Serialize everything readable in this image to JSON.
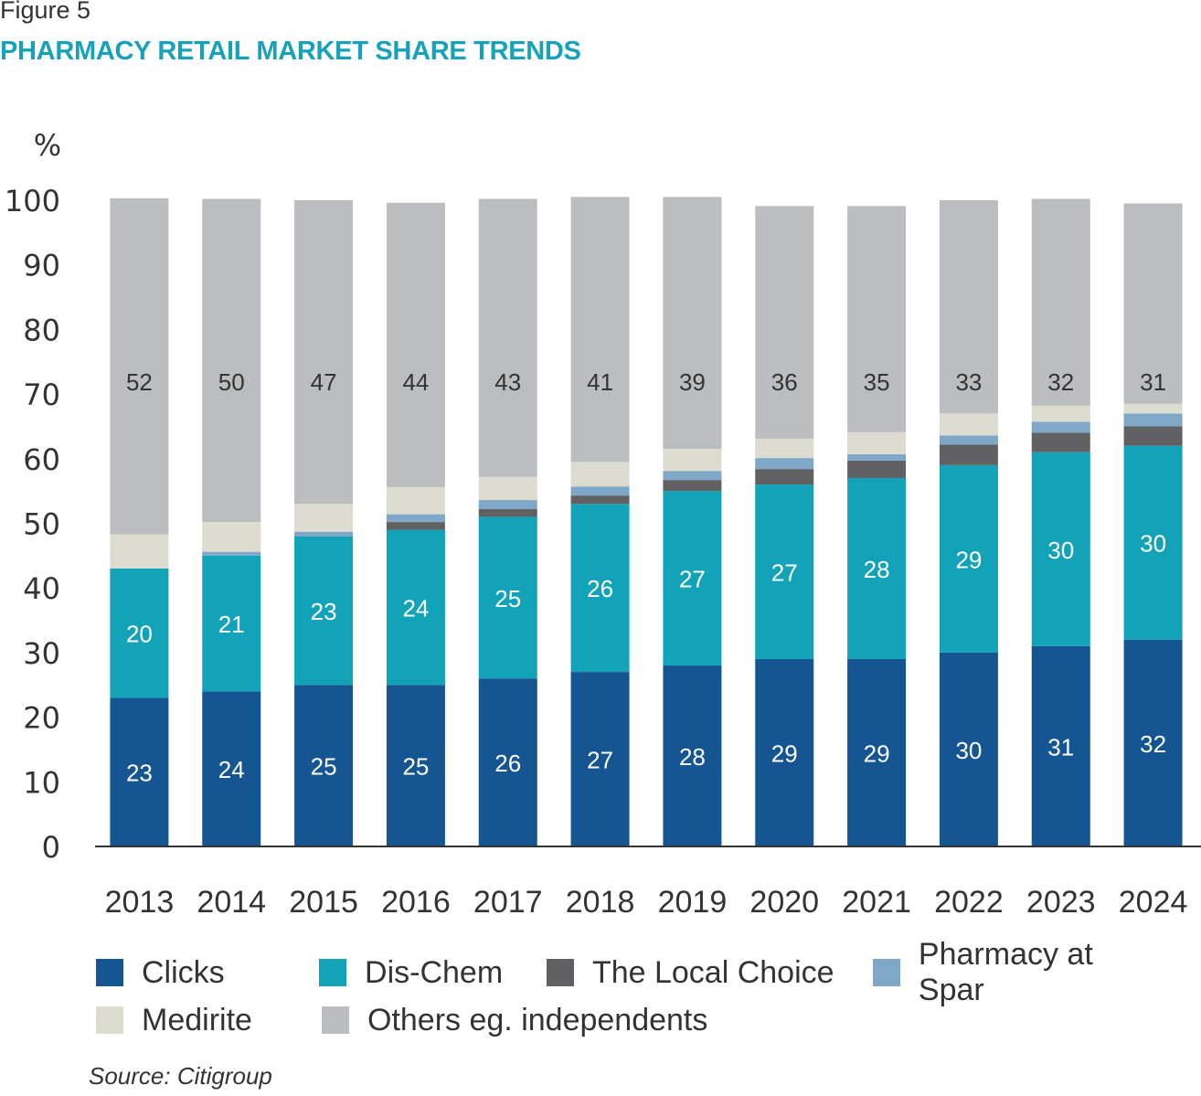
{
  "figure": {
    "label": "Figure 5",
    "title": "PHARMACY RETAIL MARKET SHARE TRENDS",
    "source": "Source: Citigroup"
  },
  "chart_data": {
    "type": "bar",
    "stacked": true,
    "title": "PHARMACY RETAIL MARKET SHARE TRENDS",
    "xlabel": "",
    "ylabel": "%",
    "ylim": [
      0,
      100
    ],
    "yticks": [
      0,
      10,
      20,
      30,
      40,
      50,
      60,
      70,
      80,
      90,
      100
    ],
    "grid": false,
    "legend_position": "bottom",
    "categories": [
      "2013",
      "2014",
      "2015",
      "2016",
      "2017",
      "2018",
      "2019",
      "2020",
      "2021",
      "2022",
      "2023",
      "2024"
    ],
    "series": [
      {
        "name": "Clicks",
        "color": "#155592",
        "label_color": "#ffffff",
        "show_labels": true,
        "values": [
          23,
          24,
          25,
          25,
          26,
          27,
          28,
          29,
          29,
          30,
          31,
          32
        ]
      },
      {
        "name": "Dis-Chem",
        "color": "#12a3b8",
        "label_color": "#ffffff",
        "show_labels": true,
        "values": [
          20,
          21,
          23,
          24,
          25,
          26,
          27,
          27,
          28,
          29,
          30,
          30
        ]
      },
      {
        "name": "The Local Choice",
        "color": "#616062",
        "label_color": "#ffffff",
        "show_labels": false,
        "values": [
          0,
          0,
          0,
          1.2,
          1.2,
          1.3,
          1.7,
          2.4,
          2.7,
          3.2,
          3.0,
          3.0
        ]
      },
      {
        "name": "Pharmacy at Spar",
        "color": "#7fa7c7",
        "label_color": "#333333",
        "show_labels": false,
        "values": [
          0,
          0.6,
          0.7,
          1.2,
          1.4,
          1.4,
          1.4,
          1.7,
          1.0,
          1.4,
          1.7,
          2.0
        ]
      },
      {
        "name": "Medirite",
        "color": "#dcdcd0",
        "label_color": "#333333",
        "show_labels": false,
        "values": [
          5.3,
          4.6,
          4.3,
          4.2,
          3.6,
          3.8,
          3.4,
          3.0,
          3.4,
          3.4,
          2.5,
          1.5
        ]
      },
      {
        "name": "Others eg. independents",
        "color": "#bcbdbf",
        "label_color": "#333333",
        "show_labels": true,
        "values": [
          52,
          50,
          47,
          44,
          43,
          41,
          39,
          36,
          35,
          33,
          32,
          31
        ]
      }
    ]
  },
  "legend": {
    "rows": [
      [
        {
          "label": "Clicks",
          "color": "#155592"
        },
        {
          "label": "Dis-Chem",
          "color": "#12a3b8"
        },
        {
          "label": "The Local Choice",
          "color": "#616062"
        },
        {
          "label": "Pharmacy at Spar",
          "color": "#7fa7c7"
        }
      ],
      [
        {
          "label": "Medirite",
          "color": "#dcdcd0"
        },
        {
          "label": "Others eg. independents",
          "color": "#bcbdbf"
        }
      ]
    ]
  }
}
